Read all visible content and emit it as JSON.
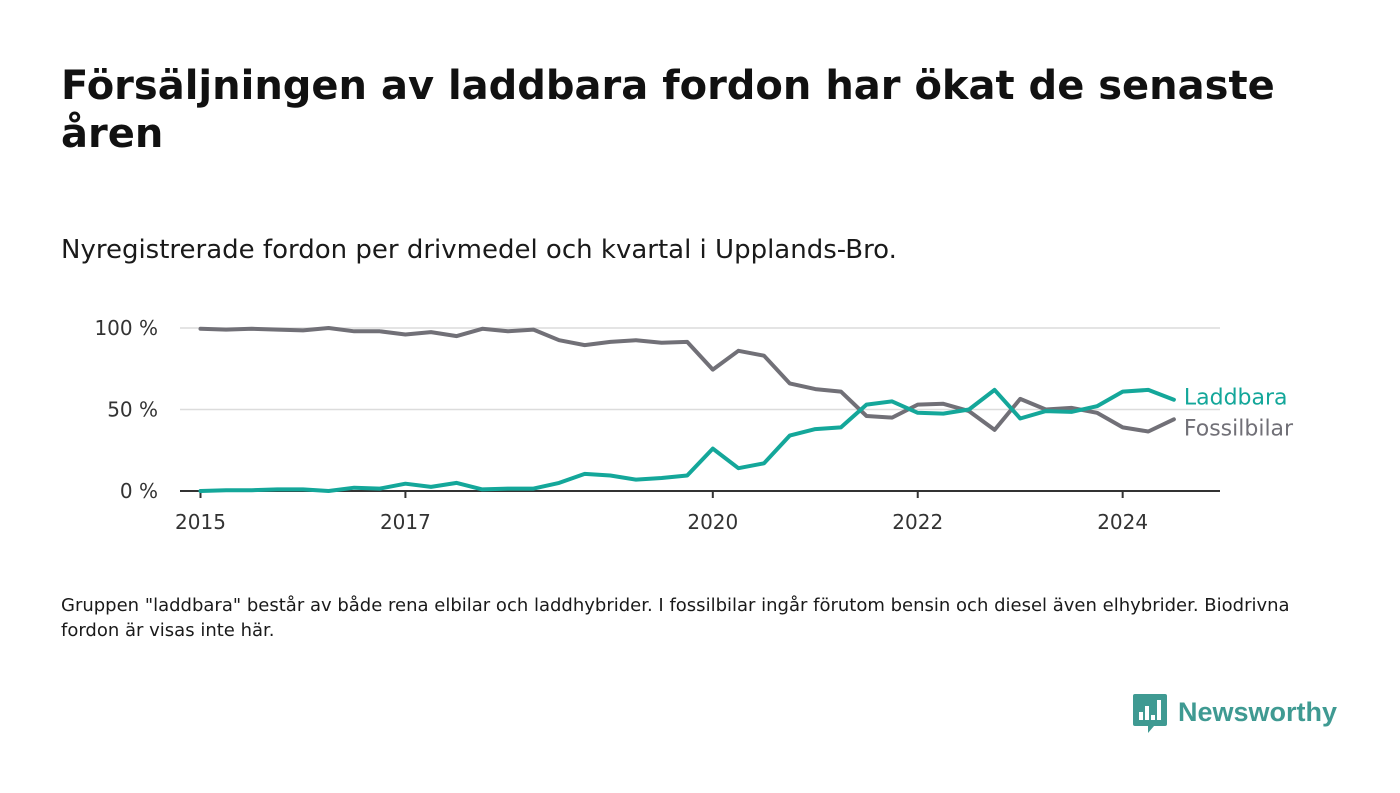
{
  "title": "Försäljningen av laddbara fordon har ökat de senaste åren",
  "subtitle": "Nyregistrerade fordon per drivmedel och kvartal i Upplands-Bro.",
  "note": "Gruppen \"laddbara\" består av både rena elbilar och laddhybrider. I fossilbilar ingår förutom bensin och diesel även elhybrider. Biodrivna fordon är visas inte här.",
  "brand": {
    "name": "Newsworthy",
    "color": "#3f9a92",
    "icon": "newsworthy-logo-icon"
  },
  "chart_data": {
    "type": "line",
    "title": "Försäljningen av laddbara fordon har ökat de senaste åren",
    "xlabel": "",
    "ylabel": "",
    "x_range": [
      2014.8,
      2024.95
    ],
    "ylim": [
      0,
      100
    ],
    "y_ticks": [
      0,
      50,
      100
    ],
    "y_tick_labels": [
      "0 %",
      "50 %",
      "100 %"
    ],
    "x_ticks": [
      2015,
      2017,
      2020,
      2022,
      2024
    ],
    "x_tick_labels": [
      "2015",
      "2017",
      "2020",
      "2022",
      "2024"
    ],
    "grid": true,
    "x": [
      2015.0,
      2015.25,
      2015.5,
      2015.75,
      2016.0,
      2016.25,
      2016.5,
      2016.75,
      2017.0,
      2017.25,
      2017.5,
      2017.75,
      2018.0,
      2018.25,
      2018.5,
      2018.75,
      2019.0,
      2019.25,
      2019.5,
      2019.75,
      2020.0,
      2020.25,
      2020.5,
      2020.75,
      2021.0,
      2021.25,
      2021.5,
      2021.75,
      2022.0,
      2022.25,
      2022.5,
      2022.75,
      2023.0,
      2023.25,
      2023.5,
      2023.75,
      2024.0,
      2024.25,
      2024.5
    ],
    "series": [
      {
        "name": "Laddbara",
        "color": "#14a79a",
        "values": [
          0,
          0.5,
          0.5,
          1,
          1,
          0,
          2,
          1.5,
          4.5,
          2.5,
          5,
          1,
          1.5,
          1.5,
          5,
          10.5,
          9.5,
          7,
          8,
          9.5,
          26,
          14,
          17,
          34,
          38,
          39,
          53,
          55,
          48,
          47.5,
          50,
          62,
          44.5,
          49,
          48.5,
          52,
          61,
          62,
          56
        ]
      },
      {
        "name": "Fossilbilar",
        "color": "#717077",
        "values": [
          99.5,
          99,
          99.5,
          99,
          98.5,
          100,
          98,
          98,
          96,
          97.5,
          95,
          99.5,
          98,
          99,
          92.5,
          89.5,
          91.5,
          92.5,
          91,
          91.5,
          74.5,
          86,
          83,
          66,
          62.5,
          61,
          46,
          45,
          53,
          53.5,
          49,
          37.5,
          56.5,
          50,
          51,
          48,
          39,
          36.5,
          44
        ]
      }
    ]
  }
}
